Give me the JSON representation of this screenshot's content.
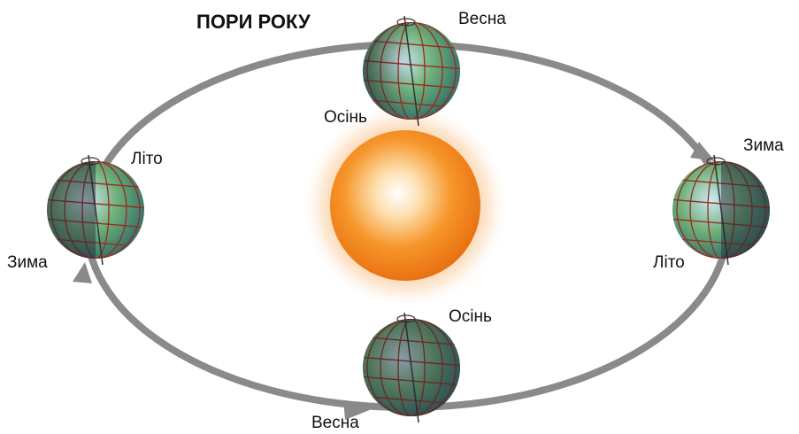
{
  "title": "ПОРИ РОКУ",
  "globes": [
    {
      "labels": [
        "Весна",
        "Осінь"
      ]
    },
    {
      "labels": [
        "Літо",
        "Зима"
      ]
    },
    {
      "labels": [
        "Зима",
        "Літо"
      ]
    },
    {
      "labels": [
        "Осінь",
        "Весна"
      ]
    }
  ]
}
